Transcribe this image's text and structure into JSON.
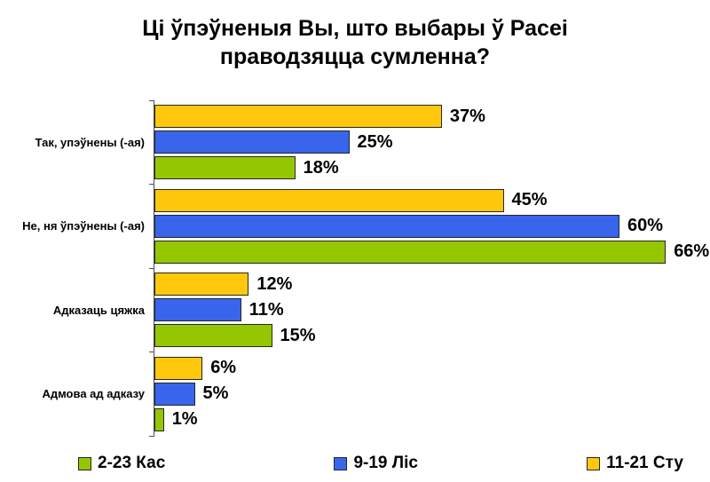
{
  "title": {
    "line1": "Ці ўпэўненыя Вы, што выбары ў Расеі",
    "line2": "праводзяцца сумленна?"
  },
  "chart_data": {
    "type": "bar",
    "orientation": "horizontal",
    "title": "Ці ўпэўненыя Вы, што выбары ў Расеі праводзяцца сумленна?",
    "categories": [
      "Так, упэўнены (-ая)",
      "Не, ня ўпэўнены (-ая)",
      "Адказаць цяжка",
      "Адмова ад адказу"
    ],
    "series": [
      {
        "name": "2-23 Кас",
        "color": "#94C702",
        "values": [
          18,
          66,
          15,
          1
        ]
      },
      {
        "name": "9-19 Ліс",
        "color": "#3865EC",
        "values": [
          25,
          60,
          11,
          5
        ]
      },
      {
        "name": "11-21 Сту",
        "color": "#FFC80D",
        "values": [
          37,
          45,
          12,
          6
        ]
      }
    ],
    "bar_row_order": [
      2,
      1,
      0
    ],
    "value_suffix": "%",
    "xlim": [
      0,
      70
    ],
    "grid": false,
    "legend_position": "bottom",
    "axis_color": "#4d4d4d",
    "bar_border_color": "#262626"
  },
  "legend": [
    {
      "label": "2-23 Кас",
      "color": "#94C702"
    },
    {
      "label": "9-19 Ліс",
      "color": "#3865EC"
    },
    {
      "label": "11-21 Сту",
      "color": "#FFC80D"
    }
  ]
}
